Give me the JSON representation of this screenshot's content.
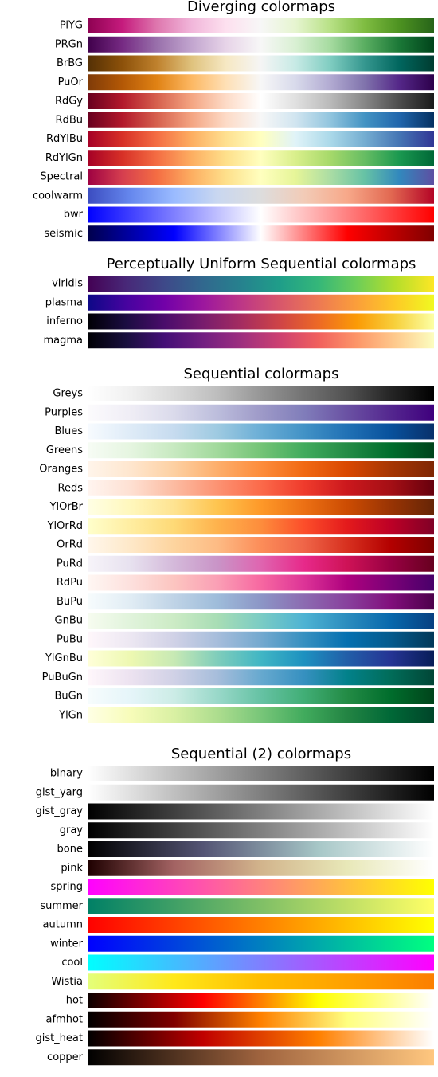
{
  "chart_data": [
    {
      "type": "colormap-strip",
      "title": "Diverging colormaps",
      "colormaps": [
        {
          "name": "PiYG",
          "colors": [
            "#8e0152",
            "#c51b7d",
            "#de77ae",
            "#f1b6da",
            "#fde0ef",
            "#f7f7f7",
            "#e6f5d0",
            "#b8e186",
            "#7fbc41",
            "#4d9221",
            "#276419"
          ]
        },
        {
          "name": "PRGn",
          "colors": [
            "#40004b",
            "#762a83",
            "#9970ab",
            "#c2a5cf",
            "#e7d4e8",
            "#f7f7f7",
            "#d9f0d3",
            "#a6dba0",
            "#5aae61",
            "#1b7837",
            "#00441b"
          ]
        },
        {
          "name": "BrBG",
          "colors": [
            "#543005",
            "#8c510a",
            "#bf812d",
            "#dfc27d",
            "#f6e8c3",
            "#f5f5f5",
            "#c7eae5",
            "#80cdc1",
            "#35978f",
            "#01665e",
            "#003c30"
          ]
        },
        {
          "name": "PuOr",
          "colors": [
            "#7f3b08",
            "#b35806",
            "#e08214",
            "#fdb863",
            "#fee0b6",
            "#f7f7f7",
            "#d8daeb",
            "#b2abd2",
            "#8073ac",
            "#542788",
            "#2d004b"
          ]
        },
        {
          "name": "RdGy",
          "colors": [
            "#67001f",
            "#b2182b",
            "#d6604d",
            "#f4a582",
            "#fddbc7",
            "#ffffff",
            "#e0e0e0",
            "#bababa",
            "#878787",
            "#4d4d4d",
            "#1a1a1a"
          ]
        },
        {
          "name": "RdBu",
          "colors": [
            "#67001f",
            "#b2182b",
            "#d6604d",
            "#f4a582",
            "#fddbc7",
            "#f7f7f7",
            "#d1e5f0",
            "#92c5de",
            "#4393c3",
            "#2166ac",
            "#053061"
          ]
        },
        {
          "name": "RdYlBu",
          "colors": [
            "#a50026",
            "#d73027",
            "#f46d43",
            "#fdae61",
            "#fee090",
            "#ffffbf",
            "#e0f3f8",
            "#abd9e9",
            "#74add1",
            "#4575b4",
            "#313695"
          ]
        },
        {
          "name": "RdYlGn",
          "colors": [
            "#a50026",
            "#d73027",
            "#f46d43",
            "#fdae61",
            "#fee08b",
            "#ffffbf",
            "#d9ef8b",
            "#a6d96a",
            "#66bd63",
            "#1a9850",
            "#006837"
          ]
        },
        {
          "name": "Spectral",
          "colors": [
            "#9e0142",
            "#d53e4f",
            "#f46d43",
            "#fdae61",
            "#fee08b",
            "#ffffbf",
            "#e6f598",
            "#abdda4",
            "#66c2a5",
            "#3288bd",
            "#5e4fa2"
          ]
        },
        {
          "name": "coolwarm",
          "colors": [
            "#3b4cc0",
            "#6688ee",
            "#9abbff",
            "#c9d7f0",
            "#dddddd",
            "#f2cbb7",
            "#f7a889",
            "#e26952",
            "#b40426"
          ]
        },
        {
          "name": "bwr",
          "colors": [
            "#0000ff",
            "#ffffff",
            "#ff0000"
          ]
        },
        {
          "name": "seismic",
          "colors": [
            "#00004c",
            "#0000ff",
            "#ffffff",
            "#ff0000",
            "#800000"
          ]
        }
      ]
    },
    {
      "type": "colormap-strip",
      "title": "Perceptually Uniform Sequential colormaps",
      "colormaps": [
        {
          "name": "viridis",
          "colors": [
            "#440154",
            "#482878",
            "#3e4989",
            "#31688e",
            "#26828e",
            "#1f9e89",
            "#35b779",
            "#6ece58",
            "#b5de2b",
            "#fde725"
          ]
        },
        {
          "name": "plasma",
          "colors": [
            "#0d0887",
            "#46039f",
            "#7201a8",
            "#9c179e",
            "#bd3786",
            "#d8576b",
            "#ed7953",
            "#fb9f3a",
            "#fdca26",
            "#f0f921"
          ]
        },
        {
          "name": "inferno",
          "colors": [
            "#000004",
            "#1b0c41",
            "#4a0c6b",
            "#781c6d",
            "#a52c60",
            "#cf4446",
            "#ed6925",
            "#fb9b06",
            "#f7d13d",
            "#fcffa4"
          ]
        },
        {
          "name": "magma",
          "colors": [
            "#000004",
            "#180f3d",
            "#440f76",
            "#721f81",
            "#9e2f7f",
            "#cd4071",
            "#f1605d",
            "#fd9668",
            "#feca8d",
            "#fcfdbf"
          ]
        }
      ]
    },
    {
      "type": "colormap-strip",
      "title": "Sequential colormaps",
      "colormaps": [
        {
          "name": "Greys",
          "colors": [
            "#ffffff",
            "#f0f0f0",
            "#d9d9d9",
            "#bdbdbd",
            "#969696",
            "#737373",
            "#525252",
            "#252525",
            "#000000"
          ]
        },
        {
          "name": "Purples",
          "colors": [
            "#fcfbfd",
            "#efedf5",
            "#dadaeb",
            "#bcbddc",
            "#9e9ac8",
            "#807dba",
            "#6a51a3",
            "#54278f",
            "#3f007d"
          ]
        },
        {
          "name": "Blues",
          "colors": [
            "#f7fbff",
            "#deebf7",
            "#c6dbef",
            "#9ecae1",
            "#6baed6",
            "#4292c6",
            "#2171b5",
            "#08519c",
            "#08306b"
          ]
        },
        {
          "name": "Greens",
          "colors": [
            "#f7fcf5",
            "#e5f5e0",
            "#c7e9c0",
            "#a1d99b",
            "#74c476",
            "#41ab5d",
            "#238b45",
            "#006d2c",
            "#00441b"
          ]
        },
        {
          "name": "Oranges",
          "colors": [
            "#fff5eb",
            "#fee6ce",
            "#fdd0a2",
            "#fdae6b",
            "#fd8d3c",
            "#f16913",
            "#d94801",
            "#a63603",
            "#7f2704"
          ]
        },
        {
          "name": "Reds",
          "colors": [
            "#fff5f0",
            "#fee0d2",
            "#fcbba1",
            "#fc9272",
            "#fb6a4a",
            "#ef3b2c",
            "#cb181d",
            "#a50f15",
            "#67000d"
          ]
        },
        {
          "name": "YlOrBr",
          "colors": [
            "#ffffe5",
            "#fff7bc",
            "#fee391",
            "#fec44f",
            "#fe9929",
            "#ec7014",
            "#cc4c02",
            "#993404",
            "#662506"
          ]
        },
        {
          "name": "YlOrRd",
          "colors": [
            "#ffffcc",
            "#ffeda0",
            "#fed976",
            "#feb24c",
            "#fd8d3c",
            "#fc4e2a",
            "#e31a1c",
            "#bd0026",
            "#800026"
          ]
        },
        {
          "name": "OrRd",
          "colors": [
            "#fff7ec",
            "#fee8c8",
            "#fdd49e",
            "#fdbb84",
            "#fc8d59",
            "#ef6548",
            "#d7301f",
            "#b30000",
            "#7f0000"
          ]
        },
        {
          "name": "PuRd",
          "colors": [
            "#f7f4f9",
            "#e7e1ef",
            "#d4b9da",
            "#c994c7",
            "#df65b0",
            "#e7298a",
            "#ce1256",
            "#980043",
            "#67001f"
          ]
        },
        {
          "name": "RdPu",
          "colors": [
            "#fff7f3",
            "#fde0dd",
            "#fcc5c0",
            "#fa9fb5",
            "#f768a1",
            "#dd3497",
            "#ae017e",
            "#7a0177",
            "#49006a"
          ]
        },
        {
          "name": "BuPu",
          "colors": [
            "#f7fcfd",
            "#e0ecf4",
            "#bfd3e6",
            "#9ebcda",
            "#8c96c6",
            "#8c6bb1",
            "#88419d",
            "#810f7c",
            "#4d004b"
          ]
        },
        {
          "name": "GnBu",
          "colors": [
            "#f7fcf0",
            "#e0f3db",
            "#ccebc5",
            "#a8ddb5",
            "#7bccc4",
            "#4eb3d3",
            "#2b8cbe",
            "#0868ac",
            "#084081"
          ]
        },
        {
          "name": "PuBu",
          "colors": [
            "#fff7fb",
            "#ece7f2",
            "#d0d1e6",
            "#a6bddb",
            "#74a9cf",
            "#3690c0",
            "#0570b0",
            "#045a8d",
            "#023858"
          ]
        },
        {
          "name": "YlGnBu",
          "colors": [
            "#ffffd9",
            "#edf8b1",
            "#c7e9b4",
            "#7fcdbb",
            "#41b6c4",
            "#1d91c0",
            "#225ea8",
            "#253494",
            "#081d58"
          ]
        },
        {
          "name": "PuBuGn",
          "colors": [
            "#fff7fb",
            "#ece2f0",
            "#d0d1e6",
            "#a6bddb",
            "#67a9cf",
            "#3690c0",
            "#02818a",
            "#016c59",
            "#014636"
          ]
        },
        {
          "name": "BuGn",
          "colors": [
            "#f7fcfd",
            "#e5f5f9",
            "#ccece6",
            "#99d8c9",
            "#66c2a4",
            "#41ae76",
            "#238b45",
            "#006d2c",
            "#00441b"
          ]
        },
        {
          "name": "YlGn",
          "colors": [
            "#ffffe5",
            "#f7fcb9",
            "#d9f0a3",
            "#addd8e",
            "#78c679",
            "#41ab5d",
            "#238443",
            "#006837",
            "#004529"
          ]
        }
      ]
    },
    {
      "type": "colormap-strip",
      "title": "Sequential (2) colormaps",
      "colormaps": [
        {
          "name": "binary",
          "colors": [
            "#ffffff",
            "#000000"
          ]
        },
        {
          "name": "gist_yarg",
          "colors": [
            "#ffffff",
            "#000000"
          ]
        },
        {
          "name": "gist_gray",
          "colors": [
            "#000000",
            "#ffffff"
          ]
        },
        {
          "name": "gray",
          "colors": [
            "#000000",
            "#ffffff"
          ]
        },
        {
          "name": "bone",
          "colors": [
            "#000000",
            "#545474",
            "#a7c7c7",
            "#ffffff"
          ]
        },
        {
          "name": "pink",
          "colors": [
            "#1e0000",
            "#a36363",
            "#d2b48c",
            "#e8e8b8",
            "#ffffff"
          ]
        },
        {
          "name": "spring",
          "colors": [
            "#ff00ff",
            "#ffff00"
          ]
        },
        {
          "name": "summer",
          "colors": [
            "#008066",
            "#ffff66"
          ]
        },
        {
          "name": "autumn",
          "colors": [
            "#ff0000",
            "#ffff00"
          ]
        },
        {
          "name": "winter",
          "colors": [
            "#0000ff",
            "#00ff80"
          ]
        },
        {
          "name": "cool",
          "colors": [
            "#00ffff",
            "#ff00ff"
          ]
        },
        {
          "name": "Wistia",
          "colors": [
            "#e4ff7a",
            "#ffe81a",
            "#ffbd00",
            "#ffa000",
            "#fc7f00"
          ]
        },
        {
          "name": "hot",
          "colors": [
            "#0b0000",
            "#ff0000",
            "#ffff00",
            "#ffffff"
          ]
        },
        {
          "name": "afmhot",
          "colors": [
            "#000000",
            "#800000",
            "#ff8000",
            "#ffff80",
            "#ffffff"
          ]
        },
        {
          "name": "gist_heat",
          "colors": [
            "#000000",
            "#c00000",
            "#ff8000",
            "#ffffff"
          ]
        },
        {
          "name": "copper",
          "colors": [
            "#000000",
            "#a0643f",
            "#ffc77f"
          ]
        }
      ]
    }
  ]
}
